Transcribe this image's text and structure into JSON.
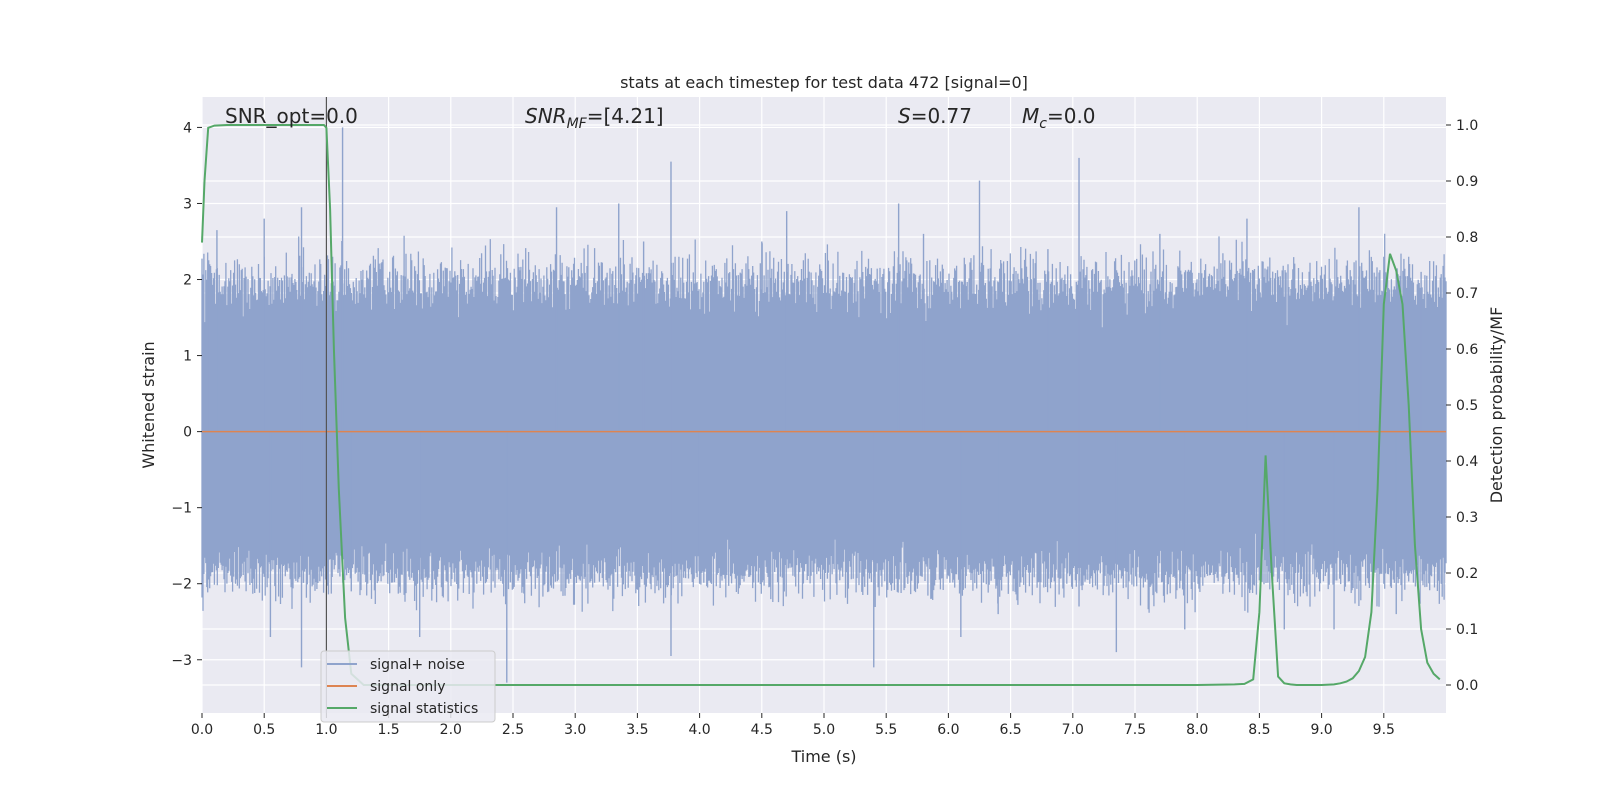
{
  "chart_data": {
    "type": "line",
    "title": "stats at each timestep for test data 472 [signal=0]",
    "xlabel": "Time (s)",
    "ylabel": "Whitened strain",
    "y2label": "Detection probability/MF",
    "xlim": [
      0.0,
      10.0
    ],
    "ylim": [
      -3.7,
      4.4
    ],
    "y2lim": [
      -0.05,
      1.05
    ],
    "xticks": [
      "0.0",
      "0.5",
      "1.0",
      "1.5",
      "2.0",
      "2.5",
      "3.0",
      "3.5",
      "4.0",
      "4.5",
      "5.0",
      "5.5",
      "6.0",
      "6.5",
      "7.0",
      "7.5",
      "8.0",
      "8.5",
      "9.0",
      "9.5"
    ],
    "xtick_values": [
      0.0,
      0.5,
      1.0,
      1.5,
      2.0,
      2.5,
      3.0,
      3.5,
      4.0,
      4.5,
      5.0,
      5.5,
      6.0,
      6.5,
      7.0,
      7.5,
      8.0,
      8.5,
      9.0,
      9.5
    ],
    "yticks": [
      "−3",
      "−2",
      "−1",
      "0",
      "1",
      "2",
      "3",
      "4"
    ],
    "ytick_values": [
      -3,
      -2,
      -1,
      0,
      1,
      2,
      3,
      4
    ],
    "y2ticks": [
      "0.0",
      "0.1",
      "0.2",
      "0.3",
      "0.4",
      "0.5",
      "0.6",
      "0.7",
      "0.8",
      "0.9",
      "1.0"
    ],
    "y2tick_values": [
      0.0,
      0.1,
      0.2,
      0.3,
      0.4,
      0.5,
      0.6,
      0.7,
      0.8,
      0.9,
      1.0
    ],
    "grid": true,
    "legend_position": "lower-left",
    "annotations": {
      "snr_opt": "SNR_opt=0.0",
      "snr_mf_italic": "SNR",
      "snr_mf_sub": "MF",
      "snr_mf_val": "=[4.21]",
      "s_italic": "S",
      "s_val": "=0.77",
      "mc_italic": "M",
      "mc_sub": "c",
      "mc_val": "=0.0"
    },
    "vline_x": 1.0,
    "series": [
      {
        "name": "signal+ noise",
        "color": "#8fa3cc",
        "axis": "left",
        "kind": "noise",
        "typical_range": [
          -1.9,
          2.0
        ],
        "spikes": [
          [
            0.05,
            2.2
          ],
          [
            0.12,
            2.65
          ],
          [
            0.5,
            2.8
          ],
          [
            0.55,
            -2.7
          ],
          [
            0.8,
            2.95
          ],
          [
            0.8,
            -3.1
          ],
          [
            0.98,
            -1.3
          ],
          [
            1.05,
            2.3
          ],
          [
            1.13,
            4.0
          ],
          [
            1.2,
            -2.1
          ],
          [
            1.75,
            -2.7
          ],
          [
            2.45,
            -3.3
          ],
          [
            2.85,
            2.95
          ],
          [
            3.35,
            3.0
          ],
          [
            3.55,
            2.5
          ],
          [
            3.77,
            3.55
          ],
          [
            3.77,
            -2.95
          ],
          [
            4.0,
            -2.0
          ],
          [
            4.5,
            2.5
          ],
          [
            4.7,
            2.9
          ],
          [
            5.4,
            -3.1
          ],
          [
            5.6,
            3.0
          ],
          [
            5.8,
            2.6
          ],
          [
            6.1,
            -2.7
          ],
          [
            6.25,
            3.3
          ],
          [
            6.4,
            -2.4
          ],
          [
            6.8,
            2.4
          ],
          [
            7.05,
            3.6
          ],
          [
            7.05,
            -2.3
          ],
          [
            7.35,
            -2.9
          ],
          [
            7.7,
            2.6
          ],
          [
            7.9,
            -2.6
          ],
          [
            8.4,
            2.8
          ],
          [
            8.7,
            -2.6
          ],
          [
            9.1,
            -2.6
          ],
          [
            9.3,
            2.95
          ],
          [
            9.5,
            2.3
          ],
          [
            9.6,
            -2.4
          ],
          [
            9.8,
            2.1
          ]
        ]
      },
      {
        "name": "signal only",
        "color": "#dd8452",
        "axis": "left",
        "x": [
          0.0,
          10.0
        ],
        "y": [
          0.0,
          0.0
        ]
      },
      {
        "name": "signal statistics",
        "color": "#55a868",
        "axis": "right",
        "x": [
          0.0,
          0.02,
          0.05,
          0.1,
          0.2,
          0.3,
          0.5,
          0.7,
          0.9,
          0.98,
          1.0,
          1.03,
          1.06,
          1.1,
          1.15,
          1.2,
          1.3,
          2.0,
          3.0,
          4.0,
          5.0,
          6.0,
          7.0,
          8.0,
          8.3,
          8.38,
          8.45,
          8.5,
          8.55,
          8.6,
          8.65,
          8.7,
          8.75,
          8.8,
          8.9,
          9.0,
          9.1,
          9.15,
          9.2,
          9.25,
          9.3,
          9.35,
          9.4,
          9.45,
          9.5,
          9.55,
          9.6,
          9.65,
          9.7,
          9.75,
          9.8,
          9.85,
          9.9,
          9.95
        ],
        "y": [
          0.79,
          0.9,
          0.995,
          0.999,
          1.0,
          1.0,
          1.0,
          1.0,
          1.0,
          1.0,
          0.995,
          0.85,
          0.6,
          0.35,
          0.12,
          0.02,
          0.0,
          0.0,
          0.0,
          0.0,
          0.0,
          0.0,
          0.0,
          0.0,
          0.001,
          0.002,
          0.01,
          0.13,
          0.41,
          0.2,
          0.015,
          0.003,
          0.001,
          0.0,
          0.0,
          0.0,
          0.001,
          0.003,
          0.006,
          0.012,
          0.025,
          0.05,
          0.13,
          0.35,
          0.68,
          0.77,
          0.74,
          0.68,
          0.5,
          0.25,
          0.1,
          0.04,
          0.02,
          0.01
        ]
      }
    ]
  }
}
